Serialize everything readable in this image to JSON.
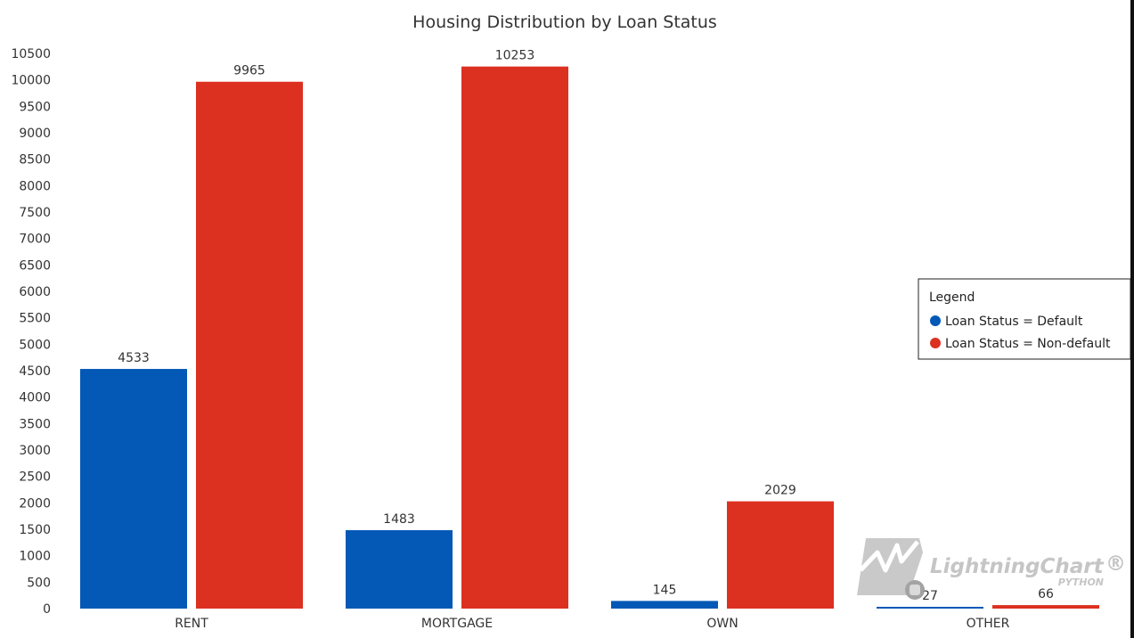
{
  "chart_data": {
    "type": "bar",
    "title": "Housing Distribution by Loan Status",
    "categories": [
      "RENT",
      "MORTGAGE",
      "OWN",
      "OTHER"
    ],
    "series": [
      {
        "name": "Loan Status = Default",
        "color": "#0458b6",
        "values": [
          4533,
          1483,
          145,
          27
        ]
      },
      {
        "name": "Loan Status = Non-default",
        "color": "#dc3020",
        "values": [
          9965,
          10253,
          2029,
          66
        ]
      }
    ],
    "yticks": [
      "0",
      "500",
      "1000",
      "1500",
      "2000",
      "2500",
      "3000",
      "3500",
      "4000",
      "4500",
      "5000",
      "5500",
      "6000",
      "6500",
      "7000",
      "7500",
      "8000",
      "8500",
      "9000",
      "9500",
      "10000",
      "10500"
    ],
    "ylim": [
      0,
      10500
    ],
    "xlabel": "",
    "ylabel": "",
    "legend": {
      "title": "Legend",
      "position": "right"
    }
  },
  "watermark": {
    "brand": "LightningChart",
    "registered": "®",
    "sub": "PYTHON",
    "icon": "lightningchart-logo-icon"
  }
}
